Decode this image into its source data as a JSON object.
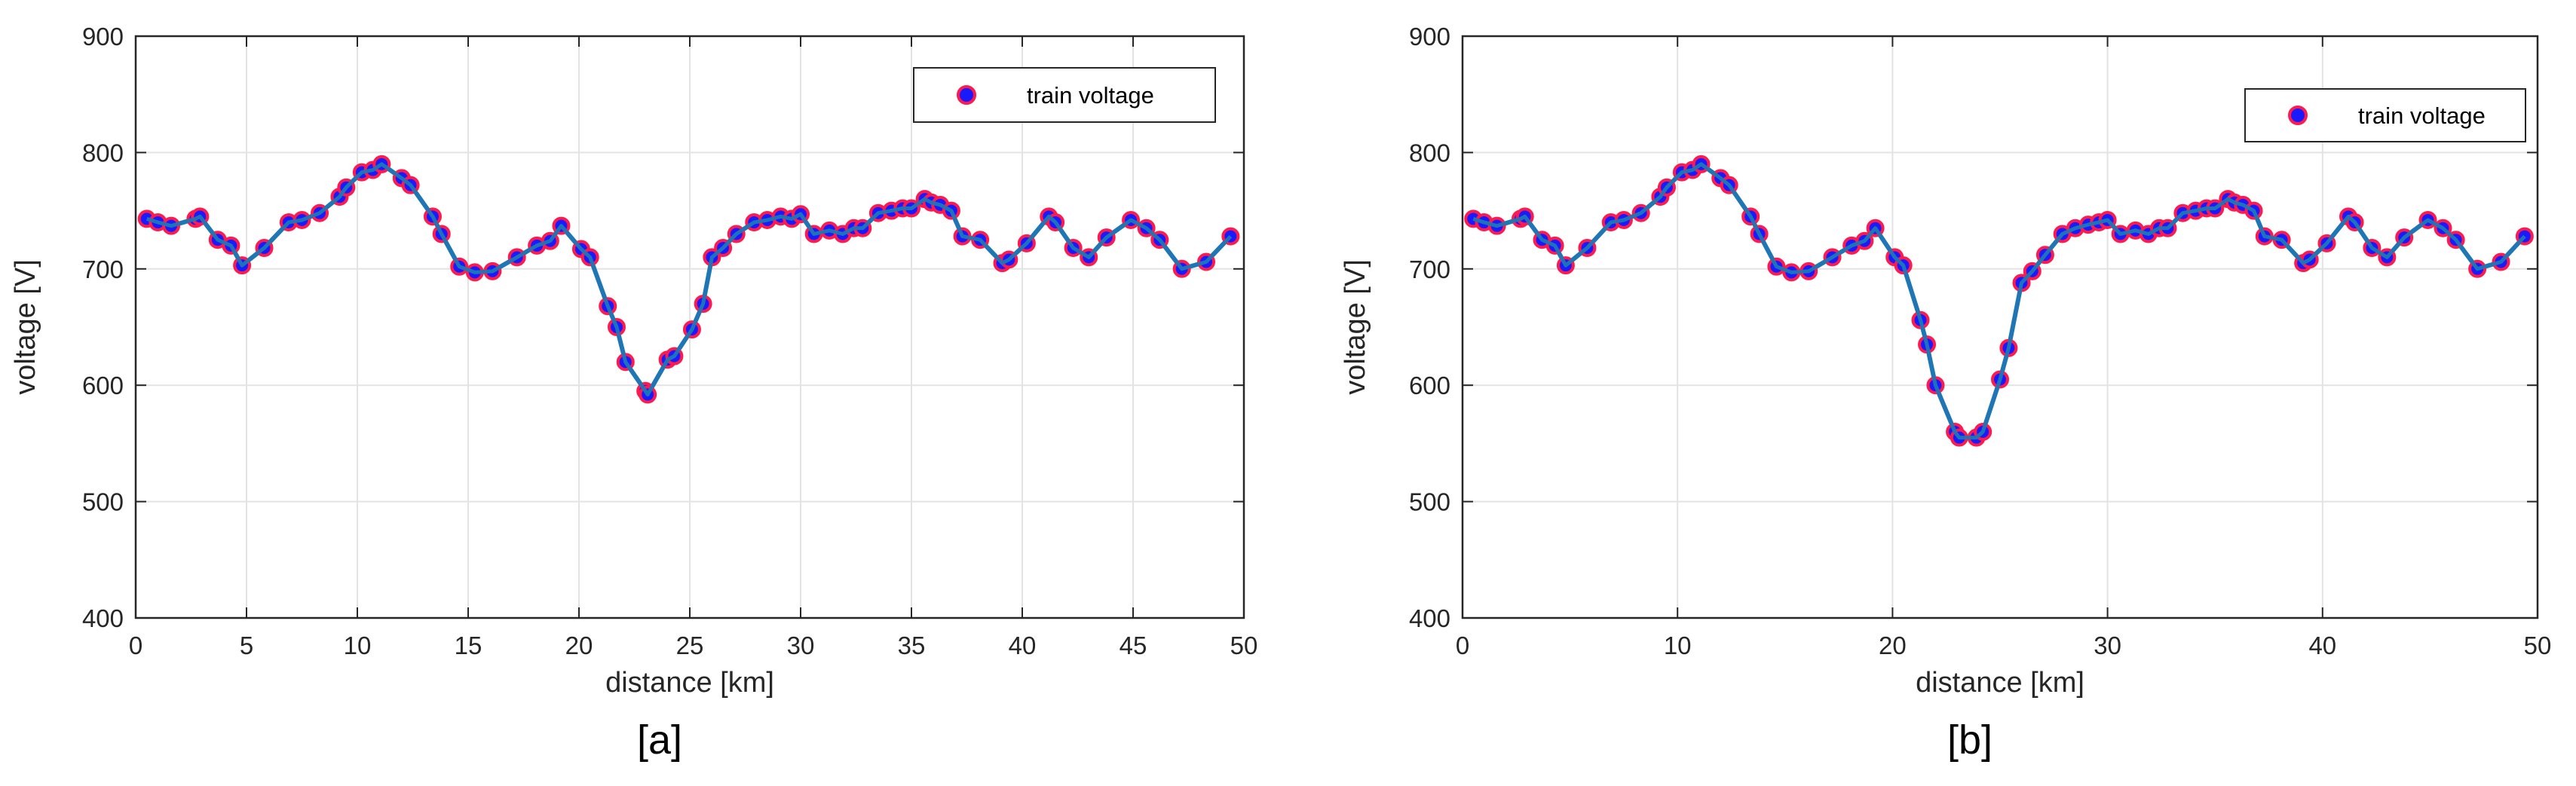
{
  "chart_data": [
    {
      "type": "line",
      "caption": "[a]",
      "xlabel": "distance [km]",
      "ylabel": "voltage [V]",
      "xlim": [
        0,
        50
      ],
      "ylim": [
        400,
        900
      ],
      "xticks": [
        0,
        5,
        10,
        15,
        20,
        25,
        30,
        35,
        40,
        45,
        50
      ],
      "yticks": [
        400,
        500,
        600,
        700,
        800,
        900
      ],
      "grid": true,
      "legend_position": "top-right",
      "colors": {
        "line": "#1f77b4",
        "marker_face": "#1a1aff",
        "marker_edge": "#ff1a4d"
      },
      "series": [
        {
          "name": "train voltage",
          "x": [
            0.5,
            1.0,
            1.6,
            2.7,
            2.9,
            3.7,
            4.3,
            4.8,
            5.8,
            6.9,
            7.5,
            8.3,
            9.2,
            9.5,
            10.2,
            10.7,
            11.1,
            12.0,
            12.4,
            13.4,
            13.8,
            14.6,
            15.3,
            16.1,
            17.2,
            18.1,
            18.7,
            19.2,
            20.1,
            20.5,
            21.3,
            21.7,
            22.1,
            23.0,
            23.1,
            24.0,
            24.3,
            25.1,
            25.6,
            26.0,
            26.5,
            27.1,
            27.9,
            28.5,
            29.1,
            29.6,
            30.0,
            30.6,
            31.3,
            31.9,
            32.4,
            32.8,
            33.5,
            34.1,
            34.6,
            35.0,
            35.6,
            35.9,
            36.3,
            36.8,
            37.3,
            38.1,
            39.1,
            39.4,
            40.2,
            41.2,
            41.5,
            42.3,
            43.0,
            43.8,
            44.9,
            45.6,
            46.2,
            47.2,
            48.3,
            49.4
          ],
          "y": [
            743,
            740,
            737,
            743,
            745,
            725,
            720,
            703,
            718,
            740,
            742,
            748,
            762,
            770,
            783,
            785,
            790,
            778,
            772,
            745,
            730,
            702,
            697,
            698,
            710,
            720,
            724,
            737,
            717,
            710,
            668,
            650,
            620,
            595,
            592,
            622,
            625,
            648,
            670,
            710,
            718,
            730,
            740,
            742,
            745,
            743,
            747,
            730,
            733,
            730,
            735,
            735,
            748,
            750,
            752,
            752,
            760,
            757,
            755,
            750,
            728,
            725,
            705,
            708,
            722,
            745,
            740,
            718,
            710,
            727,
            742,
            735,
            725,
            700,
            706,
            728
          ]
        }
      ]
    },
    {
      "type": "line",
      "caption": "[b]",
      "xlabel": "distance [km]",
      "ylabel": "voltage [V]",
      "xlim": [
        0,
        50
      ],
      "ylim": [
        400,
        900
      ],
      "xticks": [
        0,
        10,
        20,
        30,
        40,
        50
      ],
      "yticks": [
        400,
        500,
        600,
        700,
        800,
        900
      ],
      "grid": true,
      "legend_position": "top-right",
      "colors": {
        "line": "#1f77b4",
        "marker_face": "#1a1aff",
        "marker_edge": "#ff1a4d"
      },
      "series": [
        {
          "name": "train voltage",
          "x": [
            0.5,
            1.0,
            1.6,
            2.7,
            2.9,
            3.7,
            4.3,
            4.8,
            5.8,
            6.9,
            7.5,
            8.3,
            9.2,
            9.5,
            10.2,
            10.7,
            11.1,
            12.0,
            12.4,
            13.4,
            13.8,
            14.6,
            15.3,
            16.1,
            17.2,
            18.1,
            18.7,
            19.2,
            20.1,
            20.5,
            21.3,
            21.6,
            22.0,
            22.9,
            23.1,
            23.9,
            24.2,
            25.0,
            25.4,
            26.0,
            26.5,
            27.1,
            27.9,
            28.5,
            29.1,
            29.6,
            30.0,
            30.6,
            31.3,
            31.9,
            32.4,
            32.8,
            33.5,
            34.1,
            34.6,
            35.0,
            35.6,
            35.9,
            36.3,
            36.8,
            37.3,
            38.1,
            39.1,
            39.4,
            40.2,
            41.2,
            41.5,
            42.3,
            43.0,
            43.8,
            44.9,
            45.6,
            46.2,
            47.2,
            48.3,
            49.4
          ],
          "y": [
            743,
            740,
            737,
            743,
            745,
            725,
            720,
            703,
            718,
            740,
            742,
            748,
            762,
            770,
            783,
            785,
            790,
            778,
            772,
            745,
            730,
            702,
            697,
            698,
            710,
            720,
            724,
            735,
            710,
            703,
            656,
            635,
            600,
            560,
            555,
            555,
            560,
            605,
            632,
            688,
            698,
            712,
            730,
            735,
            738,
            740,
            742,
            730,
            733,
            730,
            735,
            735,
            748,
            750,
            752,
            752,
            760,
            757,
            755,
            750,
            728,
            725,
            705,
            708,
            722,
            745,
            740,
            718,
            710,
            727,
            742,
            735,
            725,
            700,
            706,
            728
          ]
        }
      ]
    }
  ]
}
